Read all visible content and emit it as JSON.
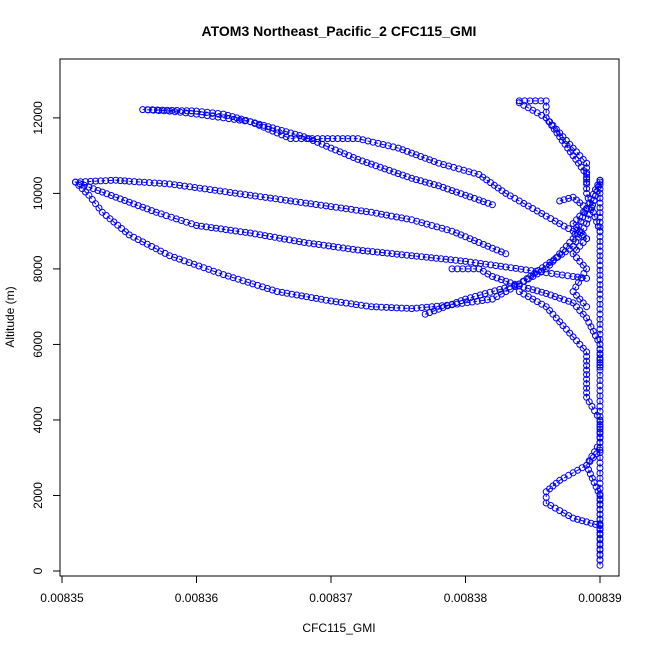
{
  "chart_data": {
    "type": "scatter",
    "title": "ATOM3 Northeast_Pacific_2 CFC115_GMI",
    "xlabel": "CFC115_GMI",
    "ylabel": "Altitude (m)",
    "xlim": [
      0.008351,
      0.00839
    ],
    "ylim": [
      0,
      12500
    ],
    "x_ticks": [
      {
        "value": 0.00835,
        "label": "0.00835"
      },
      {
        "value": 0.00836,
        "label": "0.00836"
      },
      {
        "value": 0.00837,
        "label": "0.00837"
      },
      {
        "value": 0.00838,
        "label": "0.00838"
      },
      {
        "value": 0.00839,
        "label": "0.00839"
      }
    ],
    "y_ticks": [
      {
        "value": 0,
        "label": "0"
      },
      {
        "value": 2000,
        "label": "2000"
      },
      {
        "value": 4000,
        "label": "4000"
      },
      {
        "value": 6000,
        "label": "6000"
      },
      {
        "value": 8000,
        "label": "8000"
      },
      {
        "value": 10000,
        "label": "10000"
      },
      {
        "value": 12000,
        "label": "12000"
      }
    ],
    "colors": {
      "series": "#0000ff",
      "axis": "#000000"
    },
    "marker": "open-circle",
    "line_style": "dashed",
    "series": [
      {
        "points": [
          [
            0.00839,
            150
          ],
          [
            0.00839,
            1500
          ],
          [
            0.00839,
            3000
          ],
          [
            0.00839,
            4500
          ],
          [
            0.00839,
            6000
          ],
          [
            0.00839,
            7200
          ],
          [
            0.00839,
            8600
          ],
          [
            0.00839,
            10000
          ],
          [
            0.00839,
            10350
          ]
        ]
      },
      {
        "points": [
          [
            0.00839,
            10350
          ],
          [
            0.008389,
            9600
          ],
          [
            0.008388,
            8800
          ],
          [
            0.008386,
            8000
          ],
          [
            0.008384,
            7600
          ],
          [
            0.00838,
            7200
          ],
          [
            0.008377,
            6800
          ]
        ]
      },
      {
        "points": [
          [
            0.008389,
            8800
          ],
          [
            0.008386,
            9400
          ],
          [
            0.008383,
            10000
          ],
          [
            0.008381,
            10500
          ],
          [
            0.008378,
            10800
          ],
          [
            0.008375,
            11200
          ],
          [
            0.008372,
            11450
          ],
          [
            0.008369,
            11450
          ],
          [
            0.008367,
            11450
          ],
          [
            0.008366,
            11600
          ],
          [
            0.008364,
            11900
          ],
          [
            0.008362,
            12100
          ],
          [
            0.00836,
            12180
          ],
          [
            0.008356,
            12220
          ],
          [
            0.008358,
            12180
          ],
          [
            0.00836,
            12100
          ],
          [
            0.008362,
            12000
          ],
          [
            0.008364,
            11900
          ],
          [
            0.008366,
            11700
          ],
          [
            0.008368,
            11500
          ],
          [
            0.00837,
            11200
          ],
          [
            0.008372,
            10900
          ],
          [
            0.008374,
            10650
          ],
          [
            0.008376,
            10400
          ],
          [
            0.008378,
            10200
          ],
          [
            0.00838,
            9950
          ],
          [
            0.008382,
            9700
          ]
        ]
      },
      {
        "points": [
          [
            0.00839,
            10300
          ],
          [
            0.008389,
            9200
          ],
          [
            0.008388,
            8600
          ],
          [
            0.008386,
            8100
          ],
          [
            0.008384,
            7600
          ],
          [
            0.008382,
            7200
          ],
          [
            0.008379,
            7050
          ],
          [
            0.008376,
            6950
          ],
          [
            0.008373,
            7000
          ],
          [
            0.00837,
            7150
          ],
          [
            0.008366,
            7400
          ],
          [
            0.008362,
            7850
          ],
          [
            0.008358,
            8350
          ],
          [
            0.008355,
            8900
          ],
          [
            0.008353,
            9500
          ],
          [
            0.008352,
            9950
          ],
          [
            0.008351,
            10300
          ],
          [
            0.008354,
            10350
          ],
          [
            0.008355,
            10320
          ],
          [
            0.008358,
            10250
          ],
          [
            0.008361,
            10100
          ],
          [
            0.008364,
            9950
          ],
          [
            0.008367,
            9800
          ],
          [
            0.00837,
            9650
          ],
          [
            0.008373,
            9500
          ],
          [
            0.008376,
            9300
          ],
          [
            0.008379,
            9000
          ],
          [
            0.008381,
            8700
          ],
          [
            0.008383,
            8400
          ]
        ]
      },
      {
        "points": [
          [
            0.008351,
            10300
          ],
          [
            0.008354,
            9900
          ],
          [
            0.008357,
            9500
          ],
          [
            0.00836,
            9150
          ],
          [
            0.008364,
            8950
          ],
          [
            0.008368,
            8700
          ],
          [
            0.008372,
            8500
          ],
          [
            0.008376,
            8350
          ],
          [
            0.00838,
            8200
          ],
          [
            0.008383,
            8050
          ],
          [
            0.008386,
            7900
          ],
          [
            0.008388,
            7800
          ],
          [
            0.008389,
            7750
          ]
        ]
      },
      {
        "points": [
          [
            0.008379,
            8000
          ],
          [
            0.008381,
            8000
          ],
          [
            0.008382,
            7800
          ],
          [
            0.008384,
            7550
          ],
          [
            0.008386,
            7350
          ],
          [
            0.008388,
            7100
          ],
          [
            0.008389,
            6700
          ],
          [
            0.00839,
            6000
          ],
          [
            0.00839,
            5400
          ]
        ]
      },
      {
        "points": [
          [
            0.008384,
            12450
          ],
          [
            0.008386,
            12450
          ],
          [
            0.008386,
            12000
          ],
          [
            0.008387,
            11500
          ],
          [
            0.008388,
            11000
          ],
          [
            0.008389,
            10500
          ],
          [
            0.008389,
            10000
          ],
          [
            0.00839,
            9000
          ]
        ]
      },
      {
        "points": [
          [
            0.008384,
            12400
          ],
          [
            0.008386,
            12000
          ],
          [
            0.008387,
            11600
          ],
          [
            0.008388,
            11200
          ],
          [
            0.008389,
            10800
          ],
          [
            0.008389,
            10300
          ]
        ]
      },
      {
        "points": [
          [
            0.008387,
            9800
          ],
          [
            0.008388,
            9900
          ],
          [
            0.008389,
            9600
          ],
          [
            0.008388,
            9200
          ],
          [
            0.008389,
            8800
          ],
          [
            0.008388,
            8400
          ],
          [
            0.008389,
            8000
          ],
          [
            0.008388,
            7400
          ],
          [
            0.008389,
            7000
          ]
        ]
      },
      {
        "points": [
          [
            0.00839,
            3200
          ],
          [
            0.008389,
            2800
          ],
          [
            0.008388,
            2600
          ],
          [
            0.008387,
            2400
          ],
          [
            0.008386,
            2100
          ],
          [
            0.008386,
            1800
          ],
          [
            0.008387,
            1600
          ],
          [
            0.008388,
            1400
          ],
          [
            0.008389,
            1300
          ],
          [
            0.00839,
            1200
          ]
        ]
      },
      {
        "points": [
          [
            0.008384,
            7400
          ],
          [
            0.008386,
            7000
          ],
          [
            0.008387,
            6600
          ],
          [
            0.008388,
            6200
          ],
          [
            0.008389,
            5800
          ],
          [
            0.008389,
            5200
          ],
          [
            0.008389,
            4600
          ],
          [
            0.00839,
            4000
          ],
          [
            0.00839,
            3400
          ],
          [
            0.008389,
            2800
          ],
          [
            0.00839,
            2000
          ],
          [
            0.00839,
            1000
          ],
          [
            0.00839,
            300
          ]
        ]
      }
    ]
  }
}
